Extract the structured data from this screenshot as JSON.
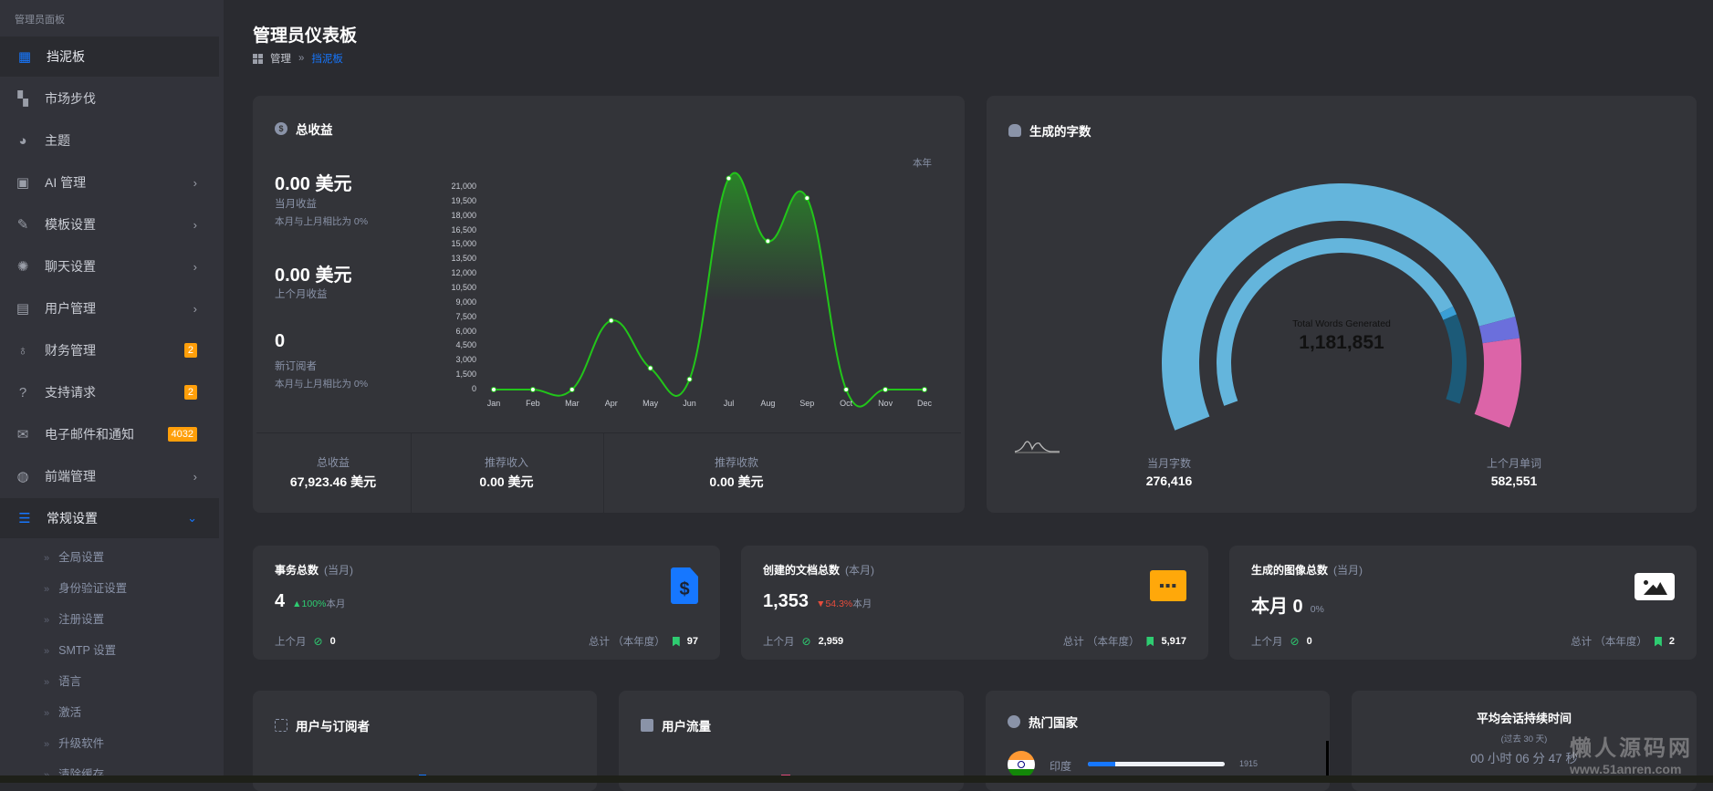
{
  "sidebar": {
    "header": "管理员面板",
    "items": [
      {
        "label": "挡泥板",
        "icon": "dashboard-icon",
        "active": true
      },
      {
        "label": "市场步伐",
        "icon": "marketplace-icon"
      },
      {
        "label": "主题",
        "icon": "palette-icon"
      },
      {
        "label": "AI 管理",
        "icon": "chip-icon",
        "chevron": true
      },
      {
        "label": "模板设置",
        "icon": "feather-icon",
        "chevron": true
      },
      {
        "label": "聊天设置",
        "icon": "brain-icon",
        "chevron": true
      },
      {
        "label": "用户管理",
        "icon": "user-card-icon",
        "chevron": true
      },
      {
        "label": "财务管理",
        "icon": "money-bag-icon",
        "badge": "2"
      },
      {
        "label": "支持请求",
        "icon": "question-icon",
        "badge": "2"
      },
      {
        "label": "电子邮件和通知",
        "icon": "mail-check-icon",
        "badge": "4032"
      },
      {
        "label": "前端管理",
        "icon": "globe-icon",
        "chevron": true
      },
      {
        "label": "常规设置",
        "icon": "sliders-icon",
        "expanded": true
      }
    ],
    "subitems": [
      "全局设置",
      "身份验证设置",
      "注册设置",
      "SMTP 设置",
      "语言",
      "激活",
      "升级软件",
      "清除缓存"
    ]
  },
  "header": {
    "title": "管理员仪表板",
    "breadcrumb": [
      "管理",
      "挡泥板"
    ],
    "separator": "»"
  },
  "revenue": {
    "title": "总收益",
    "current_value": "0.00 美元",
    "current_label": "当月收益",
    "current_compare": "本月与上月相比为 0%",
    "last_value": "0.00 美元",
    "last_label": "上个月收益",
    "subs_value": "0",
    "subs_label": "新订阅者",
    "subs_compare": "本月与上月相比为 0%",
    "period": "本年",
    "stats": [
      {
        "label": "总收益",
        "value": "67,923.46 美元"
      },
      {
        "label": "推荐收入",
        "value": "0.00 美元"
      },
      {
        "label": "推荐收款",
        "value": "0.00 美元"
      }
    ]
  },
  "chart_data": {
    "type": "area",
    "categories": [
      "Jan",
      "Feb",
      "Mar",
      "Apr",
      "May",
      "Jun",
      "Jul",
      "Aug",
      "Sep",
      "Oct",
      "Nov",
      "Dec"
    ],
    "values": [
      0,
      0,
      0,
      7150,
      2220,
      1060,
      21900,
      15380,
      19850,
      0,
      0,
      0
    ],
    "ylim": [
      0,
      21000
    ],
    "yticks": [
      "0",
      "1,500",
      "3,000",
      "4,500",
      "6,000",
      "7,500",
      "9,000",
      "10,500",
      "12,000",
      "13,500",
      "15,000",
      "16,500",
      "18,000",
      "19,500",
      "21,000"
    ],
    "line_color": "#22c51a",
    "grid": false
  },
  "words": {
    "title": "生成的字数",
    "center_label": "Total Words Generated",
    "center_value": "1,181,851",
    "current_label": "当月字数",
    "current_value": "276,416",
    "last_label": "上个月单词",
    "last_value": "582,551",
    "colors": {
      "main": "#64b5dc",
      "purple": "#6b6fdc",
      "pink": "#dc64a8",
      "teal": "#1c5a78"
    }
  },
  "kpis": [
    {
      "title": "事务总数",
      "period": "(当月)",
      "value": "4",
      "delta": "100%",
      "delta_dir": "up",
      "delta_suffix": "本月",
      "last_label": "上个月",
      "last_value": "0",
      "total_label": "总计 （本年度）",
      "total_value": "97",
      "icon": "invoice-dollar-icon"
    },
    {
      "title": "创建的文档总数",
      "period": "(本月)",
      "value": "1,353",
      "delta": "54.3%",
      "delta_dir": "down",
      "delta_suffix": "本月",
      "last_label": "上个月",
      "last_value": "2,959",
      "total_label": "总计 （本年度）",
      "total_value": "5,917",
      "icon": "folder-icon"
    },
    {
      "title": "生成的图像总数",
      "period": "(当月)",
      "value": "本月 0",
      "delta": "0%",
      "delta_dir": "none",
      "delta_suffix": "",
      "last_label": "上个月",
      "last_value": "0",
      "total_label": "总计 （本年度）",
      "total_value": "2",
      "icon": "image-icon"
    }
  ],
  "bottom": {
    "users_title": "用户与订阅者",
    "traffic_title": "用户流量",
    "countries_title": "热门国家",
    "countries": [
      {
        "name": "印度",
        "value": "1915",
        "fraction": 0.2
      }
    ],
    "session_title": "平均会话持续时间",
    "session_sub": "(过去 30 天)",
    "session_value": "00 小时 06 分 47 秒"
  },
  "watermark": [
    "懒人源码网",
    "www.51anren.com"
  ]
}
